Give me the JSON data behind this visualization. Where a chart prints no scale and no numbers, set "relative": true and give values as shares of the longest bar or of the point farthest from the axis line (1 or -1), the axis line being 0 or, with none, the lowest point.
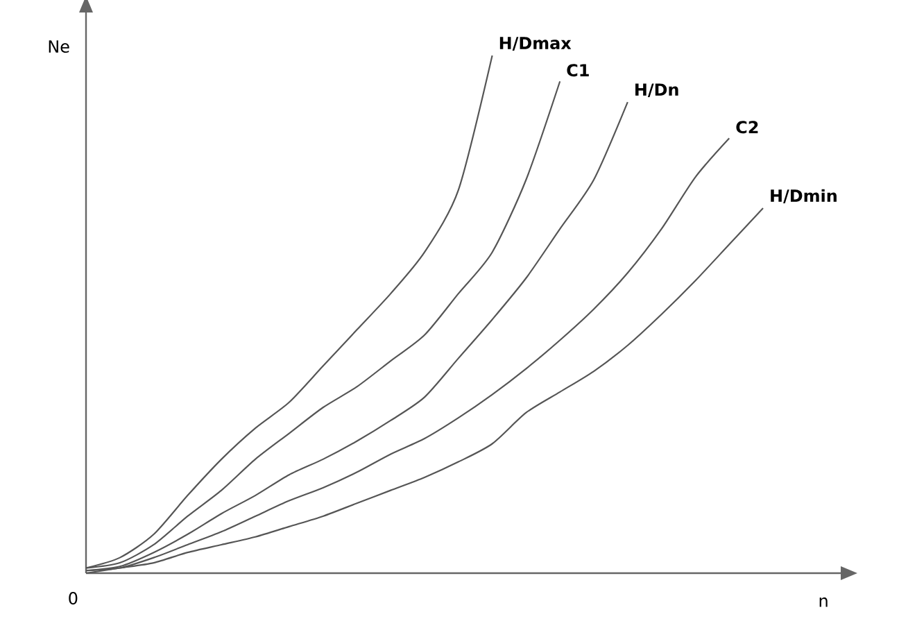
{
  "chart_data": {
    "type": "line",
    "relative": true,
    "xlabel": "n",
    "ylabel": "Ne",
    "annotations": [
      "0"
    ],
    "categories": [
      null,
      null,
      null,
      null,
      null,
      null,
      null,
      null,
      null,
      null,
      null,
      null,
      null,
      null,
      null,
      null,
      null,
      null,
      null,
      null,
      null
    ],
    "series": [
      {
        "name": "H/Dmax",
        "color": "#555555",
        "values": [
          0.01,
          0.03,
          0.075,
          0.15,
          0.22,
          0.28,
          0.33,
          0.4,
          0.47,
          0.54,
          0.62,
          0.74,
          1.0,
          null,
          null,
          null,
          null,
          null,
          null,
          null,
          null
        ]
      },
      {
        "name": "C1",
        "color": "#555555",
        "values": [
          0.01,
          0.02,
          0.055,
          0.11,
          0.16,
          0.22,
          0.27,
          0.32,
          0.36,
          0.41,
          0.46,
          0.54,
          0.62,
          0.76,
          0.95,
          null,
          null,
          null,
          null,
          null,
          null
        ]
      },
      {
        "name": "H/Dn",
        "color": "#555555",
        "values": [
          0.005,
          0.013,
          0.04,
          0.075,
          0.115,
          0.15,
          0.19,
          0.22,
          0.255,
          0.295,
          0.34,
          0.415,
          0.49,
          0.57,
          0.665,
          0.76,
          0.91,
          null,
          null,
          null,
          null
        ]
      },
      {
        "name": "C2",
        "color": "#555555",
        "values": [
          0.005,
          0.01,
          0.03,
          0.055,
          0.08,
          0.11,
          0.14,
          0.165,
          0.195,
          0.23,
          0.26,
          0.3,
          0.345,
          0.395,
          0.45,
          0.51,
          0.58,
          0.665,
          0.765,
          0.84,
          null
        ]
      },
      {
        "name": "H/Dmin",
        "color": "#555555",
        "values": [
          0,
          0.01,
          0.02,
          0.04,
          0.055,
          0.07,
          0.09,
          0.11,
          0.135,
          0.16,
          0.185,
          0.215,
          0.25,
          0.31,
          0.35,
          0.39,
          0.44,
          0.5,
          0.565,
          0.635,
          0.705
        ]
      }
    ],
    "legend": false,
    "marker": "none",
    "line_style": "solid"
  }
}
